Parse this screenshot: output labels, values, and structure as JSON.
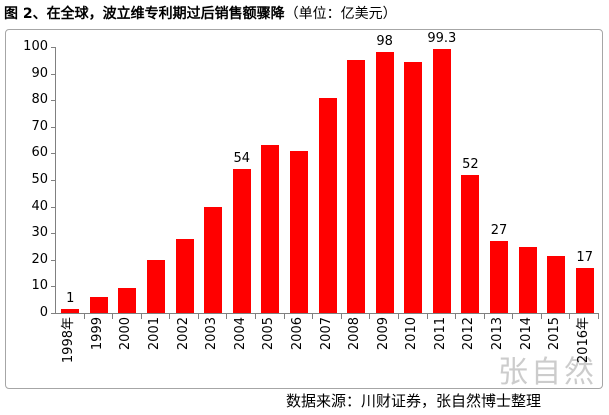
{
  "title": {
    "main": "图 2、在全球，波立维专利期过后销售额骤降",
    "unit": "（单位：亿美元）"
  },
  "footer": {
    "source": "数据来源：川财证券，张自然博士整理"
  },
  "watermark": "张自然",
  "colors": {
    "bar": "#ff0000",
    "axis": "#808080",
    "frame_border": "#a6a6a6",
    "watermark": "#cccccc",
    "text": "#000000"
  },
  "chart_data": {
    "type": "bar",
    "title": "图 2、在全球，波立维专利期过后销售额骤降",
    "unit": "亿美元",
    "categories": [
      "1998年",
      "1999",
      "2000",
      "2001",
      "2002",
      "2003",
      "2004",
      "2005",
      "2006",
      "2007",
      "2008",
      "2009",
      "2010",
      "2011",
      "2012",
      "2013",
      "2014",
      "2015",
      "2016年"
    ],
    "values": [
      1,
      6,
      9.5,
      20,
      28,
      40,
      54,
      63,
      61,
      81,
      95,
      98,
      94.5,
      99.3,
      52,
      27,
      25,
      21.5,
      17
    ],
    "data_labels": [
      "1",
      "",
      "",
      "",
      "",
      "",
      "54",
      "",
      "",
      "",
      "",
      "98",
      "",
      "99.3",
      "52",
      "27",
      "",
      "",
      "17"
    ],
    "xlabel": "",
    "ylabel": "",
    "ylim": [
      0,
      100
    ],
    "y_ticks": [
      0,
      10,
      20,
      30,
      40,
      50,
      60,
      70,
      80,
      90,
      100
    ],
    "grid": false,
    "legend": false,
    "bar_color": "#ff0000",
    "x_label_rotation": -90
  }
}
